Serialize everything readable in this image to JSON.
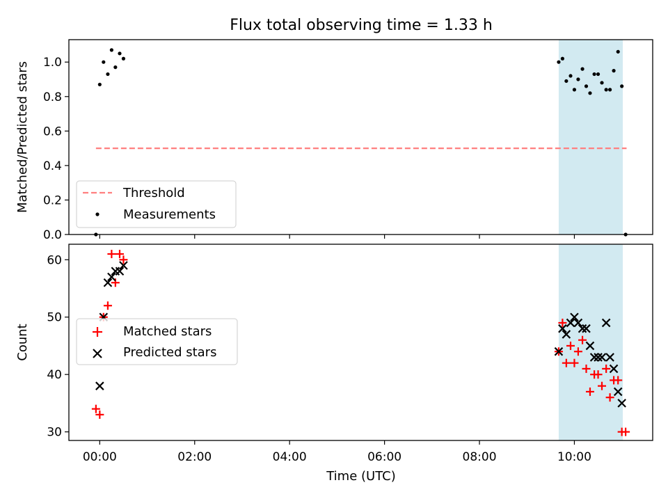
{
  "figure": {
    "title": "Flux total observing time = 1.33 h",
    "xlabel": "Time (UTC)",
    "xticks": [
      {
        "value": 0,
        "label": "00:00"
      },
      {
        "value": 2,
        "label": "02:00"
      },
      {
        "value": 4,
        "label": "04:00"
      },
      {
        "value": 6,
        "label": "06:00"
      },
      {
        "value": 8,
        "label": "08:00"
      },
      {
        "value": 10,
        "label": "10:00"
      }
    ],
    "xlim": [
      -0.65,
      11.65
    ],
    "shaded_interval": [
      9.67,
      11.02
    ],
    "colors": {
      "shade": "#add8e6",
      "threshold": "#ff7f7f",
      "matched": "#ff0000",
      "predicted": "#000000",
      "measurement": "#000000"
    }
  },
  "chart_data": [
    {
      "type": "scatter",
      "ylabel": "Matched/Predicted stars",
      "ylim": [
        0,
        1.13
      ],
      "yticks": [
        "0.0",
        "0.2",
        "0.4",
        "0.6",
        "0.8",
        "1.0"
      ],
      "legend_position": "lower-left",
      "threshold": {
        "name": "Threshold",
        "value": 0.5,
        "x_range": [
          -0.08,
          11.1
        ]
      },
      "series": [
        {
          "name": "Measurements",
          "x": [
            -0.08,
            0.0,
            0.08,
            0.17,
            0.25,
            0.33,
            0.42,
            0.5,
            9.67,
            9.75,
            9.83,
            9.92,
            10.0,
            10.08,
            10.17,
            10.25,
            10.33,
            10.42,
            10.5,
            10.58,
            10.67,
            10.75,
            10.83,
            10.92,
            11.0,
            11.08
          ],
          "y": [
            0.0,
            0.87,
            1.0,
            0.93,
            1.07,
            0.97,
            1.05,
            1.02,
            1.0,
            1.02,
            0.89,
            0.92,
            0.84,
            0.9,
            0.96,
            0.86,
            0.82,
            0.93,
            0.93,
            0.88,
            0.84,
            0.84,
            0.95,
            1.06,
            0.86,
            0.0
          ]
        }
      ]
    },
    {
      "type": "scatter",
      "ylabel": "Count",
      "ylim": [
        28.5,
        62.7
      ],
      "yticks": [
        "30",
        "40",
        "50",
        "60"
      ],
      "legend_position": "center-left",
      "series": [
        {
          "name": "Matched stars",
          "marker": "plus",
          "x": [
            -0.08,
            0.0,
            0.08,
            0.17,
            0.25,
            0.33,
            0.42,
            0.5,
            9.67,
            9.75,
            9.83,
            9.92,
            10.0,
            10.08,
            10.17,
            10.25,
            10.33,
            10.42,
            10.5,
            10.58,
            10.67,
            10.75,
            10.83,
            10.92,
            11.0,
            11.08
          ],
          "y": [
            34,
            33,
            50,
            52,
            61,
            56,
            61,
            60,
            44,
            49,
            42,
            45,
            42,
            44,
            46,
            41,
            37,
            40,
            40,
            38,
            41,
            36,
            39,
            39,
            30,
            30
          ]
        },
        {
          "name": "Predicted stars",
          "marker": "x",
          "x": [
            0.0,
            0.08,
            0.17,
            0.25,
            0.33,
            0.42,
            0.5,
            9.67,
            9.75,
            9.83,
            9.92,
            10.0,
            10.08,
            10.17,
            10.25,
            10.33,
            10.42,
            10.5,
            10.58,
            10.67,
            10.75,
            10.83,
            10.92,
            11.0
          ],
          "y": [
            38,
            50,
            56,
            57,
            58,
            58,
            59,
            44,
            48,
            47,
            49,
            50,
            49,
            48,
            48,
            45,
            43,
            43,
            43,
            49,
            43,
            41,
            37,
            35
          ]
        }
      ]
    }
  ]
}
